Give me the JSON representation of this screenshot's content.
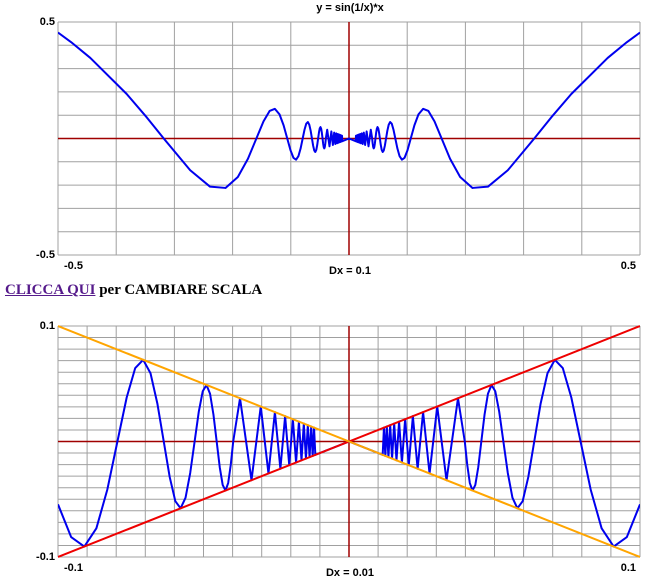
{
  "chart_data": [
    {
      "type": "line",
      "title": "y = sin(1/x)*x",
      "x_label": "Dx = 0.1",
      "xlim": [
        -0.5,
        0.5
      ],
      "ylim": [
        -0.5,
        0.5
      ],
      "xticks": [
        -0.5,
        0.5
      ],
      "yticks": [
        -0.5,
        0.5
      ],
      "grid": {
        "dx": 0.1,
        "dy": 0.1,
        "color": "#a0a0a0"
      },
      "axis_color": "#a00000",
      "series": [
        {
          "color": "#0000ee",
          "x": [
            -0.5,
            -0.47746,
            -0.44444,
            -0.38197,
            -0.34722,
            -0.31831,
            -0.27284,
            -0.23873,
            -0.21221,
            -0.19099,
            -0.17362,
            -0.15915,
            -0.14691,
            -0.13642,
            -0.12732,
            -0.11937,
            -0.11234,
            -0.1061,
            -0.10052,
            -0.09549,
            -0.09095,
            -0.08681,
            -0.08304,
            -0.07958,
            -0.07639,
            -0.07346,
            -0.07073,
            -0.06821,
            -0.06586,
            -0.06366,
            -0.06161,
            -0.05968,
            -0.05787,
            -0.05617,
            -0.05457,
            -0.05305,
            -0.05162,
            -0.05026,
            -0.04897,
            -0.04775,
            -0.04658,
            -0.04547,
            -0.04442,
            -0.04341,
            -0.04244,
            -0.04152,
            -0.04064,
            -0.03979,
            -0.03745,
            -0.03351,
            -0.03032,
            -0.02768,
            -0.02546,
            -0.02358,
            -0.02195,
            -0.02054,
            -0.01929,
            -0.01819,
            -0.01721,
            -0.01632,
            -0.01553,
            -0.0148,
            -0.01415,
            -0.01355,
            -0.01299,
            -0.01248,
            -0.01201,
            -0.01157,
            0,
            0.01157,
            0.01201,
            0.01248,
            0.01299,
            0.01355,
            0.01415,
            0.0148,
            0.01553,
            0.01632,
            0.01721,
            0.01819,
            0.01929,
            0.02054,
            0.02195,
            0.02358,
            0.02546,
            0.02768,
            0.03032,
            0.03351,
            0.03745,
            0.03979,
            0.04064,
            0.04152,
            0.04244,
            0.04341,
            0.04442,
            0.04547,
            0.04658,
            0.04775,
            0.04897,
            0.05026,
            0.05162,
            0.05305,
            0.05457,
            0.05617,
            0.05787,
            0.05968,
            0.06161,
            0.06366,
            0.06586,
            0.06821,
            0.07073,
            0.07346,
            0.07639,
            0.07958,
            0.08304,
            0.08681,
            0.09095,
            0.09549,
            0.10052,
            0.1061,
            0.11234,
            0.11937,
            0.12732,
            0.13642,
            0.14691,
            0.15915,
            0.17362,
            0.19099,
            0.21221,
            0.23873,
            0.27284,
            0.31831,
            0.34722,
            0.38197,
            0.44444,
            0.47746,
            0.5
          ],
          "values": [
            0.45465,
            0.41349,
            0.34582,
            0.19099,
            0.08979,
            0,
            -0.13642,
            -0.20675,
            -0.21221,
            -0.1654,
            -0.08681,
            0,
            0.07346,
            0.11814,
            0.12732,
            0.10337,
            0.05617,
            0,
            -0.05026,
            -0.0827,
            -0.09095,
            -0.07518,
            -0.04152,
            0,
            0.0382,
            0.06361,
            0.07073,
            0.05907,
            0.03293,
            0,
            -0.0308,
            -0.05169,
            -0.05787,
            -0.04865,
            -0.02728,
            0,
            0.02581,
            0.04353,
            0.04897,
            0.04135,
            0.02329,
            0,
            -0.02221,
            -0.03759,
            -0.04244,
            -0.03596,
            -0.02032,
            0,
            0.03745,
            -0.03351,
            0.03032,
            -0.02768,
            0.02546,
            -0.02358,
            0.02195,
            -0.02054,
            0.01929,
            -0.01819,
            0.01721,
            -0.01632,
            0.01553,
            -0.0148,
            0.01415,
            -0.01355,
            0.01299,
            -0.01248,
            0.01201,
            -0.01157,
            0,
            -0.01157,
            0.01201,
            -0.01248,
            0.01299,
            -0.01355,
            0.01415,
            -0.0148,
            0.01553,
            -0.01632,
            0.01721,
            -0.01819,
            0.01929,
            -0.02054,
            0.02195,
            -0.02358,
            0.02546,
            -0.02768,
            0.03032,
            -0.03351,
            0.03745,
            0,
            -0.02032,
            -0.03596,
            -0.04244,
            -0.03759,
            -0.02221,
            0,
            0.02329,
            0.04135,
            0.04897,
            0.04353,
            0.02581,
            0,
            -0.02728,
            -0.04865,
            -0.05787,
            -0.05169,
            -0.0308,
            0,
            0.03293,
            0.05907,
            0.07073,
            0.06361,
            0.0382,
            0,
            -0.04152,
            -0.07518,
            -0.09095,
            -0.0827,
            -0.05026,
            0,
            0.05617,
            0.10337,
            0.12732,
            0.11814,
            0.07346,
            0,
            -0.08681,
            -0.1654,
            -0.21221,
            -0.20675,
            -0.13642,
            0,
            0.08979,
            0.19099,
            0.34582,
            0.41349,
            0.45465
          ]
        }
      ]
    },
    {
      "type": "line",
      "x_label": "Dx = 0.01",
      "xlim": [
        -0.1,
        0.1
      ],
      "ylim": [
        -0.1,
        0.1
      ],
      "xticks": [
        -0.1,
        0.1
      ],
      "yticks": [
        -0.1,
        0.1
      ],
      "grid": {
        "dx": 0.01,
        "dy": 0.01,
        "color": "#a0a0a0"
      },
      "axis_color": "#a00000",
      "series": [
        {
          "color": "#0000ee",
          "x": [
            -0.1,
            -0.09549,
            -0.09095,
            -0.08681,
            -0.08304,
            -0.07958,
            -0.07639,
            -0.07346,
            -0.07073,
            -0.06821,
            -0.06586,
            -0.06366,
            -0.06161,
            -0.05968,
            -0.05787,
            -0.05617,
            -0.05457,
            -0.05305,
            -0.05162,
            -0.05026,
            -0.04897,
            -0.04775,
            -0.04658,
            -0.04547,
            -0.04442,
            -0.04341,
            -0.04244,
            -0.04152,
            -0.04064,
            -0.03979,
            -0.03745,
            -0.03351,
            -0.03032,
            -0.02768,
            -0.02546,
            -0.02358,
            -0.02195,
            -0.02054,
            -0.01929,
            -0.01819,
            -0.01721,
            -0.01632,
            -0.01553,
            -0.0148,
            -0.01415,
            -0.01355,
            -0.01299,
            -0.01248,
            -0.01201,
            -0.01157,
            0,
            0.01157,
            0.01201,
            0.01248,
            0.01299,
            0.01355,
            0.01415,
            0.0148,
            0.01553,
            0.01632,
            0.01721,
            0.01819,
            0.01929,
            0.02054,
            0.02195,
            0.02358,
            0.02546,
            0.02768,
            0.03032,
            0.03351,
            0.03745,
            0.03979,
            0.04064,
            0.04152,
            0.04244,
            0.04341,
            0.04442,
            0.04547,
            0.04658,
            0.04775,
            0.04897,
            0.05026,
            0.05162,
            0.05305,
            0.05457,
            0.05617,
            0.05787,
            0.05968,
            0.06161,
            0.06366,
            0.06586,
            0.06821,
            0.07073,
            0.07346,
            0.07639,
            0.07958,
            0.08304,
            0.08681,
            0.09095,
            0.09549,
            0.1
          ],
          "values": [
            -0.0544,
            -0.0827,
            -0.09095,
            -0.07518,
            -0.04152,
            0,
            0.0382,
            0.06361,
            0.07073,
            0.05907,
            0.03293,
            0,
            -0.0308,
            -0.05169,
            -0.05787,
            -0.04865,
            -0.02728,
            0,
            0.02581,
            0.04353,
            0.04897,
            0.04135,
            0.02329,
            0,
            -0.02221,
            -0.03759,
            -0.04244,
            -0.03596,
            -0.02032,
            0,
            0.03745,
            -0.03351,
            0.03032,
            -0.02768,
            0.02546,
            -0.02358,
            0.02195,
            -0.02054,
            0.01929,
            -0.01819,
            0.01721,
            -0.01632,
            0.01553,
            -0.0148,
            0.01415,
            -0.01355,
            0.01299,
            -0.01248,
            0.01201,
            -0.01157,
            0,
            -0.01157,
            0.01201,
            -0.01248,
            0.01299,
            -0.01355,
            0.01415,
            -0.0148,
            0.01553,
            -0.01632,
            0.01721,
            -0.01819,
            0.01929,
            -0.02054,
            0.02195,
            -0.02358,
            0.02546,
            -0.02768,
            0.03032,
            -0.03351,
            0.03745,
            0,
            -0.02032,
            -0.03596,
            -0.04244,
            -0.03759,
            -0.02221,
            0,
            0.02329,
            0.04135,
            0.04897,
            0.04353,
            0.02581,
            0,
            -0.02728,
            -0.04865,
            -0.05787,
            -0.05169,
            -0.0308,
            0,
            0.03293,
            0.05907,
            0.07073,
            0.06361,
            0.0382,
            0,
            -0.04152,
            -0.07518,
            -0.09095,
            -0.0827,
            -0.0544
          ]
        },
        {
          "color": "#ee0000",
          "x": [
            -0.1,
            0.1
          ],
          "values": [
            -0.1,
            0.1
          ]
        },
        {
          "color": "#ffa500",
          "x": [
            -0.1,
            0.1
          ],
          "values": [
            0.1,
            -0.1
          ]
        }
      ]
    }
  ],
  "link": {
    "text": "CLICCA QUI",
    "suffix": "per CAMBIARE SCALA"
  }
}
